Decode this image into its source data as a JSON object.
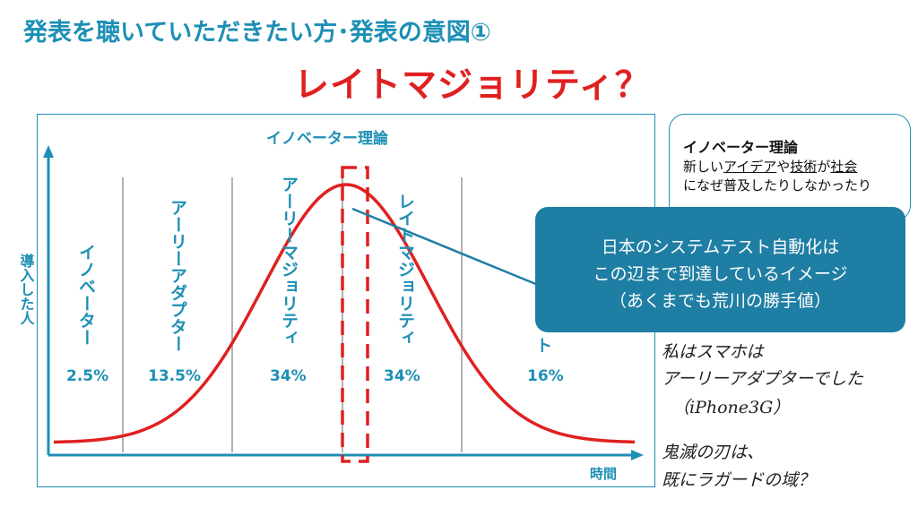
{
  "title": "発表を聴いていただきたい方･発表の意図①",
  "subtitle": "レイトマジョリティ？",
  "chart": {
    "heading": "イノベーター理論",
    "y_label": "導入した人",
    "x_label": "時間",
    "segments": [
      {
        "name": "イノベーター",
        "percent": "2.5%"
      },
      {
        "name": "アーリーアダプター",
        "percent": "13.5%"
      },
      {
        "name": "アーリーマジョリティ",
        "percent": "34%"
      },
      {
        "name": "レイトマジョリティ",
        "percent": "34%"
      },
      {
        "name": "",
        "percent": "16%"
      }
    ],
    "peek_text": "ト"
  },
  "note": {
    "title": "イノベーター理論",
    "line1a": "新しい",
    "line1b": "アイデア",
    "line1c": "や",
    "line1d": "技術",
    "line1e": "が",
    "line1f": "社会",
    "line2": "になぜ普及したりしなかったり"
  },
  "callout": {
    "line1": "日本のシステムテスト自動化は",
    "line2": "この辺まで到達しているイメージ",
    "line3": "（あくまでも荒川の勝手値）"
  },
  "handwriting": {
    "line1": "私はスマホは",
    "line2": "アーリーアダプターでした",
    "line3": "（iPhone3G）",
    "line4": "鬼滅の刃は、",
    "line5": "既にラガードの域？"
  },
  "colors": {
    "accent": "#1d8fb5",
    "curve": "#e02020",
    "callout": "#1f7ea3"
  }
}
